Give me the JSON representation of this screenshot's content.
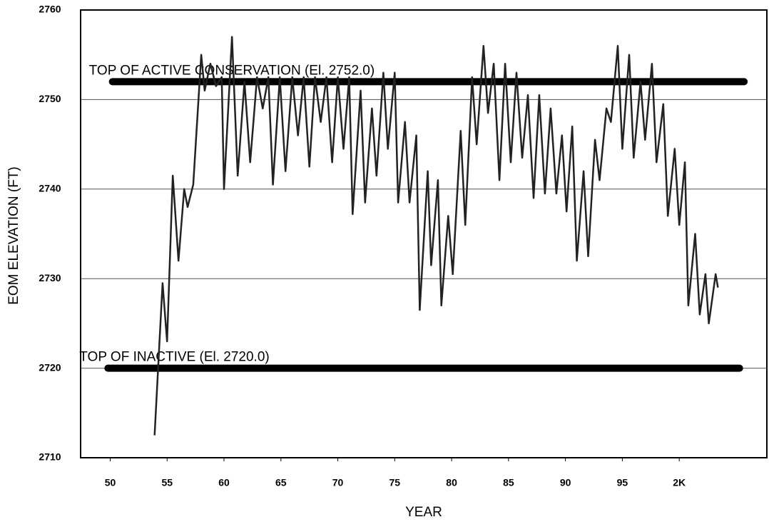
{
  "chart_data": {
    "type": "line",
    "x_label": "YEAR",
    "y_label": "EOM ELEVATION (FT)",
    "xlim": [
      1947.4,
      2007.7
    ],
    "ylim": [
      2710,
      2760
    ],
    "xticks": [
      {
        "value": 1950,
        "label": "50"
      },
      {
        "value": 1955,
        "label": "55"
      },
      {
        "value": 1960,
        "label": "60"
      },
      {
        "value": 1965,
        "label": "65"
      },
      {
        "value": 1970,
        "label": "70"
      },
      {
        "value": 1975,
        "label": "75"
      },
      {
        "value": 1980,
        "label": "80"
      },
      {
        "value": 1985,
        "label": "85"
      },
      {
        "value": 1990,
        "label": "90"
      },
      {
        "value": 1995,
        "label": "95"
      },
      {
        "value": 2000,
        "label": "2K"
      }
    ],
    "yticks": [
      2710,
      2720,
      2730,
      2740,
      2750,
      2760
    ],
    "grid": true,
    "x": [
      1953.9,
      1954.6,
      1955.0,
      1955.5,
      1956.0,
      1956.5,
      1956.8,
      1957.3,
      1958.0,
      1958.3,
      1958.8,
      1959.3,
      1959.8,
      1960.0,
      1960.7,
      1961.2,
      1961.8,
      1962.3,
      1962.9,
      1963.4,
      1963.9,
      1964.3,
      1964.9,
      1965.4,
      1966.0,
      1966.5,
      1967.0,
      1967.5,
      1968.0,
      1968.5,
      1969.0,
      1969.5,
      1970.0,
      1970.5,
      1971.0,
      1971.3,
      1972.0,
      1972.4,
      1973.0,
      1973.4,
      1974.0,
      1974.4,
      1975.0,
      1975.3,
      1975.9,
      1976.3,
      1976.9,
      1977.2,
      1977.9,
      1978.2,
      1978.8,
      1979.1,
      1979.7,
      1980.1,
      1980.8,
      1981.2,
      1981.8,
      1982.2,
      1982.8,
      1983.2,
      1983.7,
      1984.2,
      1984.7,
      1985.2,
      1985.7,
      1986.2,
      1986.7,
      1987.2,
      1987.7,
      1988.2,
      1988.7,
      1989.2,
      1989.7,
      1990.1,
      1990.6,
      1991.0,
      1991.6,
      1992.0,
      1992.6,
      1993.0,
      1993.6,
      1994.0,
      1994.6,
      1995.0,
      1995.6,
      1996.0,
      1996.6,
      1997.0,
      1997.6,
      1998.0,
      1998.6,
      1999.0,
      1999.6,
      2000.0,
      2000.5,
      2000.8,
      2001.4,
      2001.8,
      2002.3,
      2002.6,
      2003.2,
      2003.4
    ],
    "series": [
      {
        "color": "#222222",
        "values": [
          2712.5,
          2729.5,
          2723,
          2741.5,
          2732,
          2740,
          2738,
          2740.5,
          2755,
          2751,
          2754,
          2751.5,
          2752.5,
          2740,
          2757,
          2741.5,
          2752,
          2743,
          2752.5,
          2749,
          2752.5,
          2740.5,
          2752.5,
          2742,
          2752.5,
          2746,
          2752.5,
          2742.5,
          2752.5,
          2747.5,
          2752.5,
          2743,
          2752.5,
          2744.5,
          2752.5,
          2737.2,
          2751,
          2738.5,
          2749,
          2741.5,
          2753,
          2744.5,
          2753,
          2738.5,
          2747.5,
          2738.5,
          2746,
          2726.5,
          2742,
          2731.5,
          2741,
          2727,
          2737,
          2730.5,
          2746.5,
          2736,
          2752.5,
          2745,
          2756,
          2748.5,
          2754,
          2741,
          2754,
          2743,
          2753,
          2743.5,
          2750.5,
          2739,
          2750.5,
          2739.5,
          2749,
          2739.5,
          2746,
          2737.5,
          2747,
          2732,
          2742,
          2732.5,
          2745.5,
          2741,
          2749,
          2747.5,
          2756,
          2744.5,
          2755,
          2743.5,
          2752,
          2745.5,
          2754,
          2743,
          2749.5,
          2737,
          2744.5,
          2736,
          2743,
          2727,
          2735,
          2726,
          2730.5,
          2725,
          2730.5,
          2729
        ]
      }
    ],
    "reference_lines": [
      {
        "label": "TOP OF ACTIVE CONSERVATION (El. 2752.0)",
        "value": 2752,
        "xrange": [
          1950.2,
          2005.7
        ],
        "color": "#000000"
      },
      {
        "label": "TOP OF INACTIVE (El. 2720.0)",
        "value": 2720,
        "xrange": [
          1949.8,
          2005.3
        ],
        "color": "#000000"
      }
    ]
  }
}
